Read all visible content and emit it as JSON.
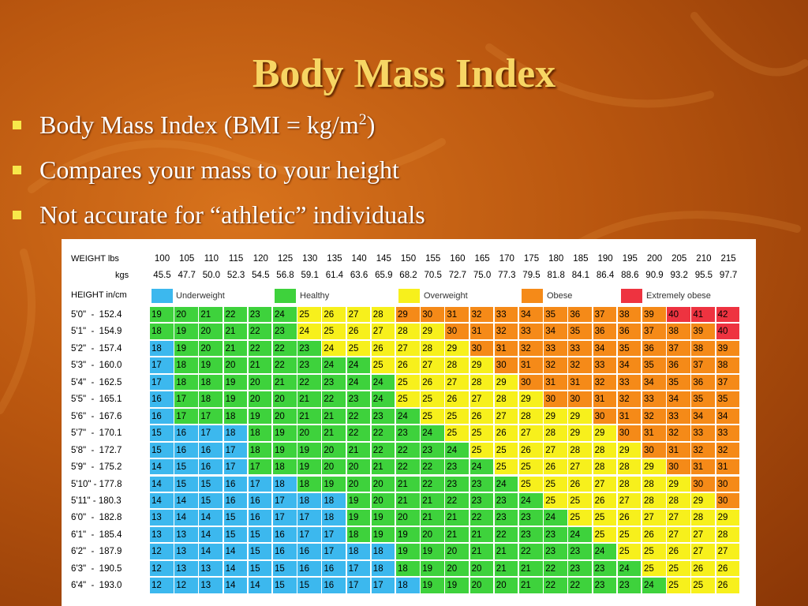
{
  "slide": {
    "title": "Body Mass Index",
    "bullets": [
      {
        "pre": "Body Mass Index (BMI = kg/m",
        "sup": "2",
        "post": ")"
      },
      {
        "pre": "Compares your mass to your height",
        "sup": "",
        "post": ""
      },
      {
        "pre": "Not accurate for “athletic” individuals",
        "sup": "",
        "post": ""
      }
    ]
  },
  "chart_data": {
    "type": "table",
    "weight_label": "WEIGHT lbs",
    "kgs_label": "kgs",
    "height_label": "HEIGHT in/cm",
    "weights_lbs": [
      "100",
      "105",
      "110",
      "115",
      "120",
      "125",
      "130",
      "135",
      "140",
      "145",
      "150",
      "155",
      "160",
      "165",
      "170",
      "175",
      "180",
      "185",
      "190",
      "195",
      "200",
      "205",
      "210",
      "215"
    ],
    "weights_kgs": [
      "45.5",
      "47.7",
      "50.0",
      "52.3",
      "54.5",
      "56.8",
      "59.1",
      "61.4",
      "63.6",
      "65.9",
      "68.2",
      "70.5",
      "72.7",
      "75.0",
      "77.3",
      "79.5",
      "81.8",
      "84.1",
      "86.4",
      "88.6",
      "90.9",
      "93.2",
      "95.5",
      "97.7"
    ],
    "legend": [
      {
        "key": "under",
        "label": "Underweight",
        "color": "#3cb8ee"
      },
      {
        "key": "healthy",
        "label": "Healthy",
        "color": "#3ed23c"
      },
      {
        "key": "over",
        "label": "Overweight",
        "color": "#f7f01c"
      },
      {
        "key": "obese",
        "label": "Obese",
        "color": "#f58a18"
      },
      {
        "key": "extreme",
        "label": "Extremely obese",
        "color": "#ee3340"
      }
    ],
    "heights": [
      "5'0\"  -  152.4",
      "5'1\"  -  154.9",
      "5'2\"  -  157.4",
      "5'3\"  -  160.0",
      "5'4\"  -  162.5",
      "5'5\"  -  165.1",
      "5'6\"  -  167.6",
      "5'7\"  -  170.1",
      "5'8\"  -  172.7",
      "5'9\"  -  175.2",
      "5'10\" - 177.8",
      "5'11\" - 180.3",
      "6'0\"  -  182.8",
      "6'1\"  -  185.4",
      "6'2\"  -  187.9",
      "6'3\"  -  190.5",
      "6'4\"  -  193.0"
    ],
    "bmi": [
      [
        19,
        20,
        21,
        22,
        23,
        24,
        25,
        26,
        27,
        28,
        29,
        30,
        31,
        32,
        33,
        34,
        35,
        36,
        37,
        38,
        39,
        40,
        41,
        42
      ],
      [
        18,
        19,
        20,
        21,
        22,
        23,
        24,
        25,
        26,
        27,
        28,
        29,
        30,
        31,
        32,
        33,
        34,
        35,
        36,
        36,
        37,
        38,
        39,
        40
      ],
      [
        18,
        19,
        20,
        21,
        22,
        22,
        23,
        24,
        25,
        26,
        27,
        28,
        29,
        30,
        31,
        32,
        33,
        33,
        34,
        35,
        36,
        37,
        38,
        39
      ],
      [
        17,
        18,
        19,
        20,
        21,
        22,
        23,
        24,
        24,
        25,
        26,
        27,
        28,
        29,
        30,
        31,
        32,
        32,
        33,
        34,
        35,
        36,
        37,
        38
      ],
      [
        17,
        18,
        18,
        19,
        20,
        21,
        22,
        23,
        24,
        24,
        25,
        26,
        27,
        28,
        29,
        30,
        31,
        31,
        32,
        33,
        34,
        35,
        36,
        37
      ],
      [
        16,
        17,
        18,
        19,
        20,
        20,
        21,
        22,
        23,
        24,
        25,
        25,
        26,
        27,
        28,
        29,
        30,
        30,
        31,
        32,
        33,
        34,
        35,
        35
      ],
      [
        16,
        17,
        17,
        18,
        19,
        20,
        21,
        21,
        22,
        23,
        24,
        25,
        25,
        26,
        27,
        28,
        29,
        29,
        30,
        31,
        32,
        33,
        34,
        34
      ],
      [
        15,
        16,
        17,
        18,
        18,
        19,
        20,
        21,
        22,
        22,
        23,
        24,
        25,
        25,
        26,
        27,
        28,
        29,
        29,
        30,
        31,
        32,
        33,
        33
      ],
      [
        15,
        16,
        16,
        17,
        18,
        19,
        19,
        20,
        21,
        22,
        22,
        23,
        24,
        25,
        25,
        26,
        27,
        28,
        28,
        29,
        30,
        31,
        32,
        32
      ],
      [
        14,
        15,
        16,
        17,
        17,
        18,
        19,
        20,
        20,
        21,
        22,
        22,
        23,
        24,
        25,
        25,
        26,
        27,
        28,
        28,
        29,
        30,
        31,
        31
      ],
      [
        14,
        15,
        15,
        16,
        17,
        18,
        18,
        19,
        20,
        20,
        21,
        22,
        23,
        23,
        24,
        25,
        25,
        26,
        27,
        28,
        28,
        29,
        30,
        30
      ],
      [
        14,
        14,
        15,
        16,
        16,
        17,
        18,
        18,
        19,
        20,
        21,
        21,
        22,
        23,
        23,
        24,
        25,
        25,
        26,
        27,
        28,
        28,
        29,
        30
      ],
      [
        13,
        14,
        14,
        15,
        16,
        17,
        17,
        18,
        19,
        19,
        20,
        21,
        21,
        22,
        23,
        23,
        24,
        25,
        25,
        26,
        27,
        27,
        28,
        29
      ],
      [
        13,
        13,
        14,
        15,
        15,
        16,
        17,
        17,
        18,
        19,
        19,
        20,
        21,
        21,
        22,
        23,
        23,
        24,
        25,
        25,
        26,
        27,
        27,
        28
      ],
      [
        12,
        13,
        14,
        14,
        15,
        16,
        16,
        17,
        18,
        18,
        19,
        19,
        20,
        21,
        21,
        22,
        23,
        23,
        24,
        25,
        25,
        26,
        27,
        27
      ],
      [
        12,
        13,
        13,
        14,
        15,
        15,
        16,
        16,
        17,
        18,
        18,
        19,
        20,
        20,
        21,
        21,
        22,
        23,
        23,
        24,
        25,
        25,
        26,
        26
      ],
      [
        12,
        12,
        13,
        14,
        14,
        15,
        15,
        16,
        17,
        17,
        18,
        19,
        19,
        20,
        20,
        21,
        22,
        22,
        23,
        23,
        24,
        25,
        25,
        26
      ]
    ],
    "categories_grid": [
      "HHHHHHOOOOBBBBBBBBBBBEEE",
      "HHHHHHOOOOOOBBBBBBBBBBBE",
      "UHHHHHHOOOOOOBBBBBBBBBBB",
      "UHHHHHHHHOOOOOBBBBBBBBBB",
      "UHHHHHHHHHOOOOOBBBBBBBBB",
      "UHHHHHHHHHOOOOOOBBBBBBBB",
      "UHHHHHHHHHHOOOOOOOBBBBBB",
      "UUUUHHHHHHHHOOOOOOOBBBBB",
      "UUUUHHHHHHHHHOOOOOOOBBBB",
      "UUUUHHHHHHHHHHOOOOOOOBBB",
      "UUUUUUHHHHHHHHHOOOOOOOBB",
      "UUUUUUUUHHHHHHHHOOOOOOOB",
      "UUUUUUUUHHHHHHHHHOOOOOOO",
      "UUUUUUUUHHHHHHHHHHOOOOOO",
      "UUUUUUUUUUHHHHHHHHHOOOOO",
      "UUUUUUUUUUHHHHHHHHHHOOOO",
      "UUUUUUUUUUUHHHHHHHHHHOOO"
    ]
  }
}
